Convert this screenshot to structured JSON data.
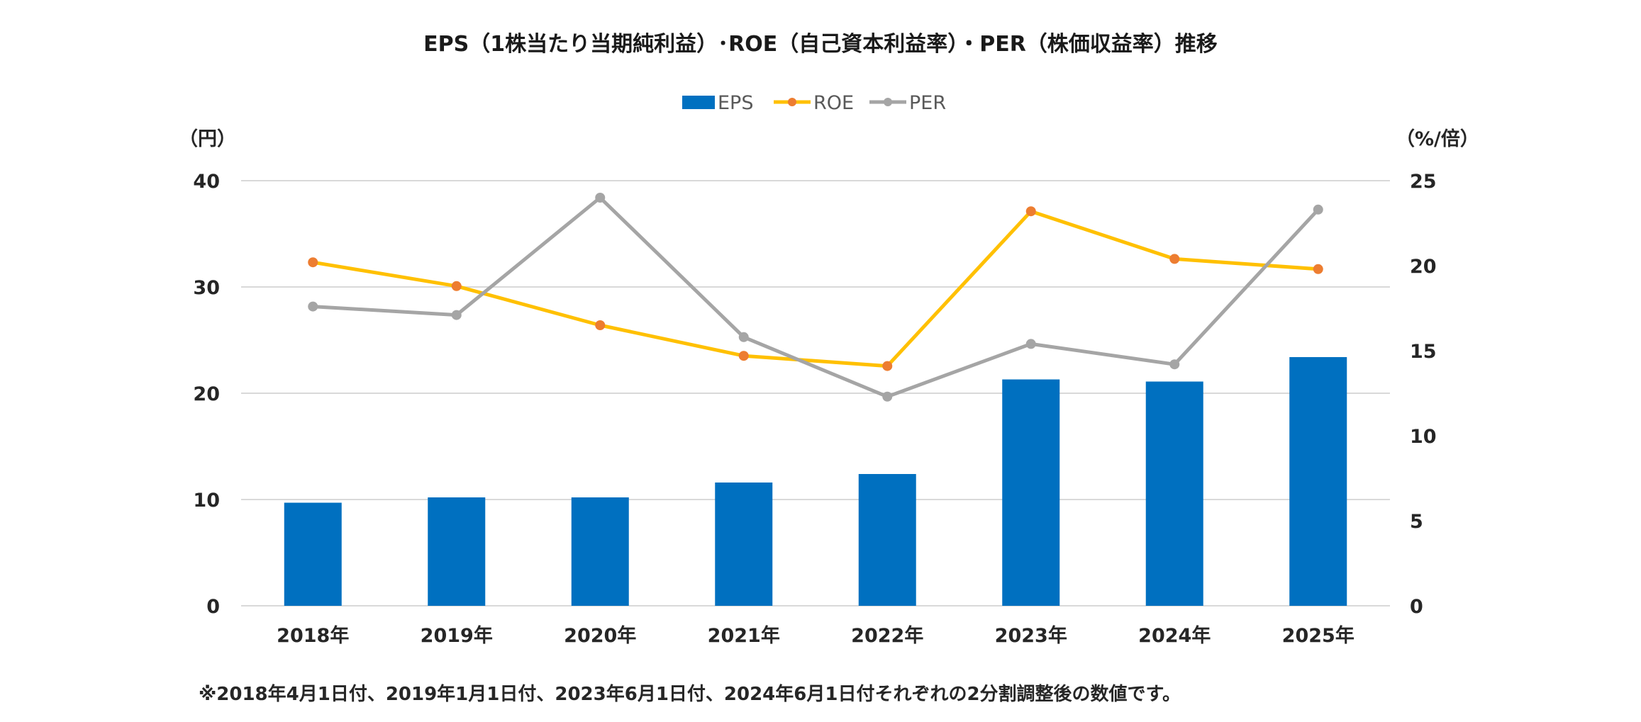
{
  "chart_data": {
    "type": "bar",
    "title": "EPS（1株当たり当期純利益）･ROE（自己資本利益率）・PER（株価収益率）推移",
    "categories": [
      "2018年",
      "2019年",
      "2020年",
      "2021年",
      "2022年",
      "2023年",
      "2024年",
      "2025年"
    ],
    "y_left": {
      "unit": "（円）",
      "range": [
        0,
        40
      ],
      "ticks": [
        "0",
        "10",
        "20",
        "30",
        "40"
      ]
    },
    "y_right": {
      "unit": "（%/倍）",
      "range": [
        0,
        25
      ],
      "ticks": [
        "0",
        "5",
        "10",
        "15",
        "20",
        "25"
      ]
    },
    "grid": true,
    "legend_position": "top-center",
    "series": [
      {
        "name": "EPS",
        "type": "bar",
        "axis": "left",
        "color": "#0070c0",
        "values": [
          9.7,
          10.2,
          10.2,
          11.6,
          12.4,
          21.3,
          21.1,
          23.4
        ]
      },
      {
        "name": "ROE",
        "type": "line",
        "axis": "right",
        "color": "#ffc000",
        "marker_color": "#ed7d31",
        "values": [
          20.2,
          18.8,
          16.5,
          14.7,
          14.1,
          23.2,
          20.4,
          19.8
        ]
      },
      {
        "name": "PER",
        "type": "line",
        "axis": "right",
        "color": "#a5a5a5",
        "marker_color": "#a5a5a5",
        "values": [
          17.6,
          17.1,
          24.0,
          15.8,
          12.3,
          15.4,
          14.2,
          23.3
        ]
      }
    ],
    "footnote": "※2018年4月1日付、2019年1月1日付、2023年6月1日付、2024年6月1日付それぞれの2分割調整後の数値です。"
  }
}
